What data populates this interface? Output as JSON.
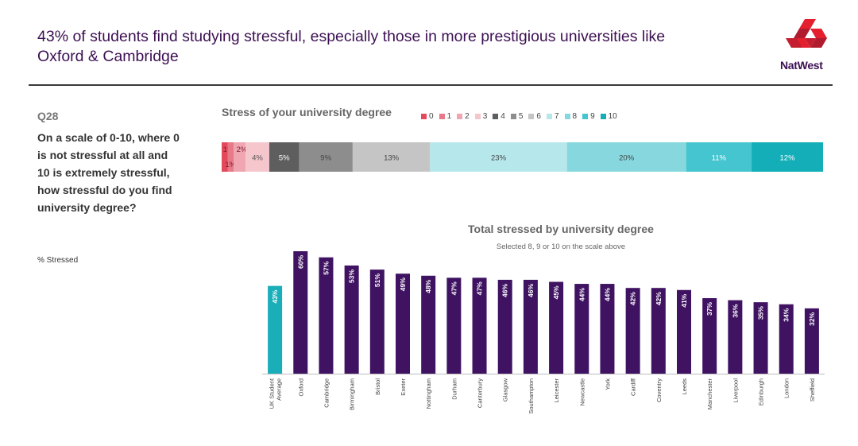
{
  "header": {
    "title_line1": "43% of students find studying stressful, especially those in more prestigious universities like",
    "title_line2": "Oxford & Cambridge",
    "brand": "NatWest"
  },
  "question": {
    "number": "Q28",
    "text": "On a scale of 0-10, where 0 is not stressful at all and 10 is extremely stressful, how stressful do you find university degree?",
    "measure_label": "% Stressed"
  },
  "colors": {
    "accent": "#3c1053",
    "average_bar": "#1aafb8",
    "uni_bar": "#3f1362",
    "logo": "#e4202e"
  },
  "chart_data": [
    {
      "type": "bar",
      "orientation": "horizontal",
      "stacked": true,
      "title": "Stress of your university degree",
      "legend_position": "top-right",
      "categories": [
        "0",
        "1",
        "2",
        "3",
        "4",
        "5",
        "6",
        "7",
        "8",
        "9",
        "10"
      ],
      "values": [
        1,
        1,
        2,
        4,
        5,
        9,
        13,
        23,
        20,
        11,
        12
      ],
      "labels": [
        "1%",
        "1%",
        "2%",
        "4%",
        "5%",
        "9%",
        "13%",
        "23%",
        "20%",
        "11%",
        "12%"
      ],
      "colors": [
        "#e4495b",
        "#e77a88",
        "#f0a6b0",
        "#f6c6cd",
        "#5e5e5e",
        "#8d8d8d",
        "#c5c5c5",
        "#b6e7eb",
        "#86d8de",
        "#45c5cf",
        "#13aeb8"
      ],
      "label_colors": [
        "#7a2030",
        "#7a2030",
        "#7a2030",
        "#555555",
        "#ffffff",
        "#444444",
        "#444444",
        "#444444",
        "#444444",
        "#ffffff",
        "#ffffff"
      ]
    },
    {
      "type": "bar",
      "title": "Total stressed by university degree",
      "subtitle": "Selected 8, 9 or 10 on the scale above",
      "categories": [
        "UK Student Average",
        "Oxford",
        "Cambridge",
        "Birmingham",
        "Bristol",
        "Exeter",
        "Nottingham",
        "Durham",
        "Canterbury",
        "Glasgow",
        "Southampton",
        "Leicester",
        "Newcastle",
        "York",
        "Cardiff",
        "Coventry",
        "Leeds",
        "Manchester",
        "Liverpool",
        "Edinburgh",
        "London",
        "Sheffield"
      ],
      "category_lines": [
        [
          "UK Student",
          "Average"
        ],
        [
          "Oxford"
        ],
        [
          "Cambridge"
        ],
        [
          "Birmingham"
        ],
        [
          "Bristol"
        ],
        [
          "Exeter"
        ],
        [
          "Nottingham"
        ],
        [
          "Durham"
        ],
        [
          "Canterbury"
        ],
        [
          "Glasgow"
        ],
        [
          "Southampton"
        ],
        [
          "Leicester"
        ],
        [
          "Newcastle"
        ],
        [
          "York"
        ],
        [
          "Cardiff"
        ],
        [
          "Coventry"
        ],
        [
          "Leeds"
        ],
        [
          "Manchester"
        ],
        [
          "Liverpool"
        ],
        [
          "Edinburgh"
        ],
        [
          "London"
        ],
        [
          "Sheffield"
        ]
      ],
      "values": [
        43,
        60,
        57,
        53,
        51,
        49,
        48,
        47,
        47,
        46,
        46,
        45,
        44,
        44,
        42,
        42,
        41,
        37,
        36,
        35,
        34,
        32
      ],
      "labels": [
        "43%",
        "60%",
        "57%",
        "53%",
        "51%",
        "49%",
        "48%",
        "47%",
        "47%",
        "46%",
        "46%",
        "45%",
        "44%",
        "44%",
        "42%",
        "42%",
        "41%",
        "37%",
        "36%",
        "35%",
        "34%",
        "32%"
      ],
      "ylim": [
        0,
        60
      ],
      "highlight_index": 0
    }
  ]
}
